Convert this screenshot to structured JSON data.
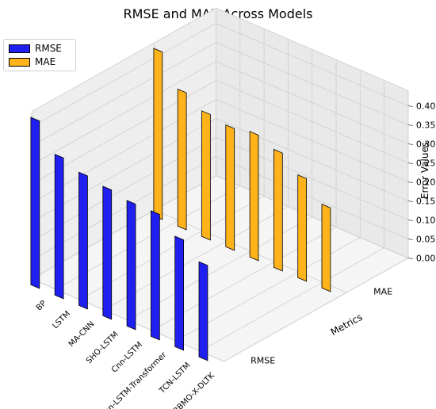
{
  "chart_data": {
    "type": "bar",
    "title": "RMSE and MAE Across Models",
    "categories": [
      "BP",
      "LSTM",
      "MA-CNN",
      "SHO-LSTM",
      "Cnn-LSTM",
      "Cnn-LSTM-Transformer",
      "TCN-LSTM",
      "RBMO-X-DLTK"
    ],
    "depth_categories": [
      "RMSE",
      "MAE"
    ],
    "series": [
      {
        "name": "RMSE",
        "color": "#1f1ff0",
        "values": [
          0.44,
          0.37,
          0.35,
          0.34,
          0.33,
          0.33,
          0.29,
          0.25
        ]
      },
      {
        "name": "MAE",
        "color": "#ffb31a",
        "values": [
          0.44,
          0.36,
          0.33,
          0.32,
          0.33,
          0.31,
          0.27,
          0.22
        ]
      }
    ],
    "ylabel": "Metrics",
    "zlabel": "Error Values",
    "zlim": [
      0,
      0.44
    ],
    "zticks": [
      "0.00",
      "0.05",
      "0.10",
      "0.15",
      "0.20",
      "0.25",
      "0.30",
      "0.35",
      "0.40"
    ],
    "grid": true,
    "legend_position": "top-left"
  }
}
